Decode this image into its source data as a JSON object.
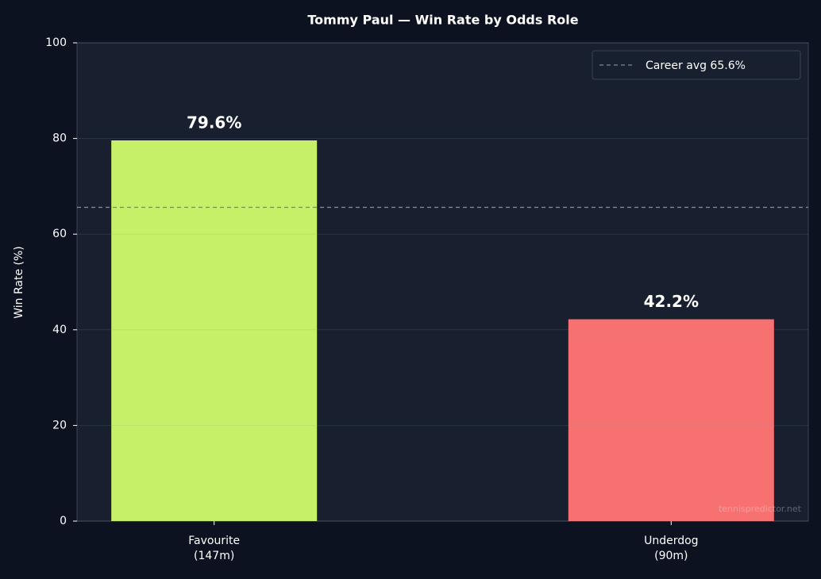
{
  "chart_data": {
    "type": "bar",
    "title": "Tommy Paul — Win Rate by Odds Role",
    "ylabel": "Win Rate (%)",
    "categories": [
      [
        "Favourite",
        "(147m)"
      ],
      [
        "Underdog",
        "(90m)"
      ]
    ],
    "values": [
      79.6,
      42.2
    ],
    "value_labels": [
      "79.6%",
      "42.2%"
    ],
    "colors": [
      "#c6f068",
      "#f87171"
    ],
    "reference_line": {
      "value": 65.6,
      "label": "Career avg 65.6%",
      "color": "#7d8799",
      "style": "dashed"
    },
    "ylim": [
      0,
      100
    ],
    "yticks": [
      0,
      20,
      40,
      60,
      80,
      100
    ],
    "grid": true,
    "legend": "upper right",
    "watermark": "tennispredictor.net"
  }
}
